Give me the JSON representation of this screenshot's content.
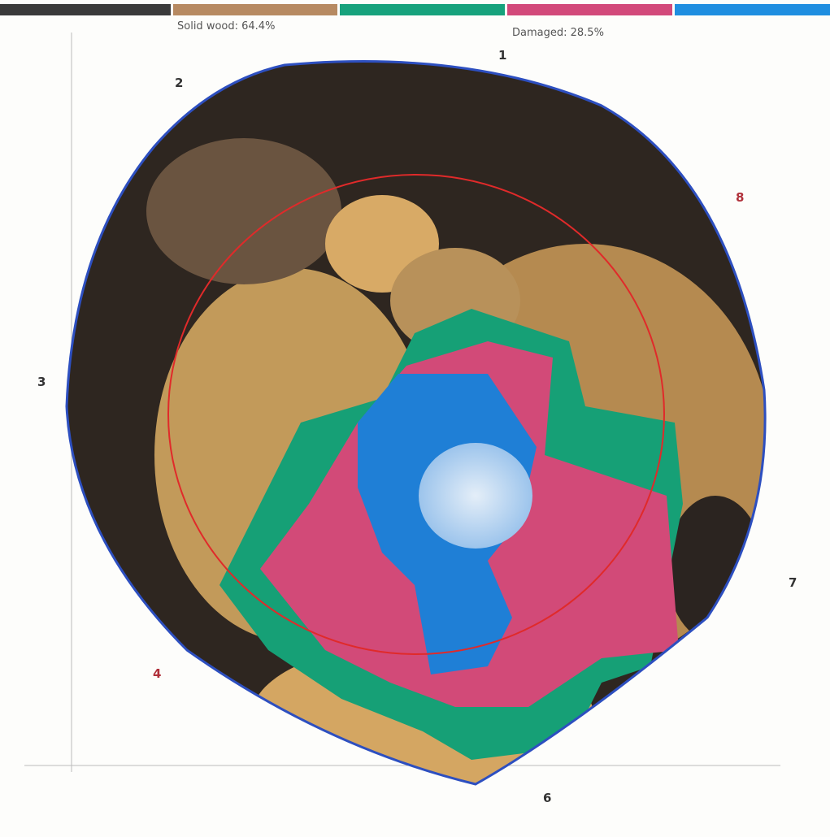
{
  "legend": {
    "solid_wood": "Solid wood: 64.4%",
    "damaged": "Damaged: 28.5%"
  },
  "sensors": [
    "1",
    "2",
    "3",
    "4",
    "6",
    "7",
    "8"
  ]
}
